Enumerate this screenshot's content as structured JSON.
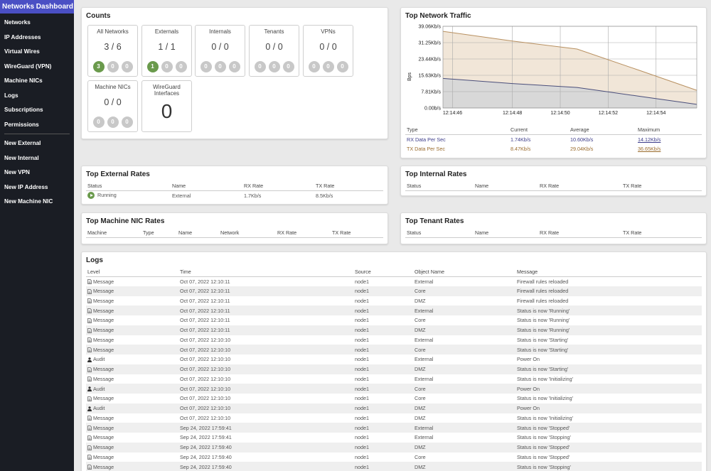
{
  "sidebar": {
    "title": "Networks Dashboard",
    "nav": [
      "Networks",
      "IP Addresses",
      "Virtual Wires",
      "WireGuard (VPN)",
      "Machine NICs",
      "Logs",
      "Subscriptions",
      "Permissions"
    ],
    "actions": [
      "New External",
      "New Internal",
      "New VPN",
      "New IP Address",
      "New Machine NIC"
    ]
  },
  "counts": {
    "title": "Counts",
    "cards": [
      {
        "label": "All Networks",
        "value": "3 / 6",
        "dots": [
          "3",
          "0",
          "0"
        ]
      },
      {
        "label": "Externals",
        "value": "1 / 1",
        "dots": [
          "1",
          "0",
          "0"
        ]
      },
      {
        "label": "Internals",
        "value": "0 / 0",
        "dots": [
          "0",
          "0",
          "0"
        ]
      },
      {
        "label": "Tenants",
        "value": "0 / 0",
        "dots": [
          "0",
          "0",
          "0"
        ]
      },
      {
        "label": "VPNs",
        "value": "0 / 0",
        "dots": [
          "0",
          "0",
          "0"
        ]
      },
      {
        "label": "Machine NICs",
        "value": "0 / 0",
        "dots": [
          "0",
          "0",
          "0"
        ]
      },
      {
        "label": "WireGuard Interfaces",
        "value": "0"
      }
    ],
    "green_color": "#6a9a4c",
    "grey_color": "#c8c8c8"
  },
  "traffic": {
    "title": "Top Network Traffic",
    "table_headers": [
      "Type",
      "Current",
      "Average",
      "Maximum"
    ],
    "rows": [
      {
        "type": "RX Data Per Sec",
        "current": "1.74Kb/s",
        "average": "10.60Kb/s",
        "maximum": "14.12Kb/s"
      },
      {
        "type": "TX Data Per Sec",
        "current": "8.47Kb/s",
        "average": "29.04Kb/s",
        "maximum": "36.65Kb/s"
      }
    ]
  },
  "chart_data": {
    "type": "area",
    "title": "",
    "xlabel": "",
    "ylabel": "Bps",
    "x": [
      "12:14:45.6",
      "12:14:48.5",
      "12:14:51.2",
      "12:14:53.8",
      "12:14:56.2"
    ],
    "xticks": [
      "12:14:46",
      "12:14:48",
      "12:14:50",
      "12:14:52",
      "12:14:54"
    ],
    "yticks": [
      "0.00b/s",
      "7.81Kb/s",
      "15.63Kb/s",
      "23.44Kb/s",
      "31.25Kb/s",
      "39.06Kb/s"
    ],
    "ylim": [
      0,
      39.06
    ],
    "series": [
      {
        "name": "TX Data Per Sec",
        "values": [
          36.65,
          32.0,
          28.2,
          18.0,
          8.47
        ],
        "color": "#b89060",
        "fill": "#f1e6d8"
      },
      {
        "name": "RX Data Per Sec",
        "values": [
          14.12,
          11.7,
          9.8,
          5.6,
          1.74
        ],
        "color": "#4a4e7a",
        "fill": "#d8d8d8"
      }
    ],
    "grid": true
  },
  "external_rates": {
    "title": "Top External Rates",
    "headers": [
      "Status",
      "Name",
      "RX Rate",
      "TX Rate"
    ],
    "rows": [
      {
        "status": "Running",
        "name": "External",
        "rx": "1.7Kb/s",
        "tx": "8.5Kb/s"
      }
    ]
  },
  "internal_rates": {
    "title": "Top Internal Rates",
    "headers": [
      "Status",
      "Name",
      "RX Rate",
      "TX Rate"
    ]
  },
  "nic_rates": {
    "title": "Top Machine NIC Rates",
    "headers": [
      "Machine",
      "Type",
      "Name",
      "Network",
      "RX Rate",
      "TX Rate"
    ]
  },
  "tenant_rates": {
    "title": "Top Tenant Rates",
    "headers": [
      "Status",
      "Name",
      "RX Rate",
      "TX Rate"
    ]
  },
  "logs": {
    "title": "Logs",
    "headers": [
      "Level",
      "Time",
      "Source",
      "Object Name",
      "Message"
    ],
    "rows": [
      {
        "level": "Message",
        "icon": "document-icon",
        "time": "Oct 07, 2022 12:10:11",
        "source": "node1",
        "object": "External",
        "message": "Firewall rules reloaded"
      },
      {
        "level": "Message",
        "icon": "document-icon",
        "time": "Oct 07, 2022 12:10:11",
        "source": "node1",
        "object": "Core",
        "message": "Firewall rules reloaded"
      },
      {
        "level": "Message",
        "icon": "document-icon",
        "time": "Oct 07, 2022 12:10:11",
        "source": "node1",
        "object": "DMZ",
        "message": "Firewall rules reloaded"
      },
      {
        "level": "Message",
        "icon": "document-icon",
        "time": "Oct 07, 2022 12:10:11",
        "source": "node1",
        "object": "External",
        "message": "Status is now 'Running'"
      },
      {
        "level": "Message",
        "icon": "document-icon",
        "time": "Oct 07, 2022 12:10:11",
        "source": "node1",
        "object": "Core",
        "message": "Status is now 'Running'"
      },
      {
        "level": "Message",
        "icon": "document-icon",
        "time": "Oct 07, 2022 12:10:11",
        "source": "node1",
        "object": "DMZ",
        "message": "Status is now 'Running'"
      },
      {
        "level": "Message",
        "icon": "document-icon",
        "time": "Oct 07, 2022 12:10:10",
        "source": "node1",
        "object": "External",
        "message": "Status is now 'Starting'"
      },
      {
        "level": "Message",
        "icon": "document-icon",
        "time": "Oct 07, 2022 12:10:10",
        "source": "node1",
        "object": "Core",
        "message": "Status is now 'Starting'"
      },
      {
        "level": "Audit",
        "icon": "user-icon",
        "time": "Oct 07, 2022 12:10:10",
        "source": "node1",
        "object": "External",
        "message": "Power On"
      },
      {
        "level": "Message",
        "icon": "document-icon",
        "time": "Oct 07, 2022 12:10:10",
        "source": "node1",
        "object": "DMZ",
        "message": "Status is now 'Starting'"
      },
      {
        "level": "Message",
        "icon": "document-icon",
        "time": "Oct 07, 2022 12:10:10",
        "source": "node1",
        "object": "External",
        "message": "Status is now 'Initializing'"
      },
      {
        "level": "Audit",
        "icon": "user-icon",
        "time": "Oct 07, 2022 12:10:10",
        "source": "node1",
        "object": "Core",
        "message": "Power On"
      },
      {
        "level": "Message",
        "icon": "document-icon",
        "time": "Oct 07, 2022 12:10:10",
        "source": "node1",
        "object": "Core",
        "message": "Status is now 'Initializing'"
      },
      {
        "level": "Audit",
        "icon": "user-icon",
        "time": "Oct 07, 2022 12:10:10",
        "source": "node1",
        "object": "DMZ",
        "message": "Power On"
      },
      {
        "level": "Message",
        "icon": "document-icon",
        "time": "Oct 07, 2022 12:10:10",
        "source": "node1",
        "object": "DMZ",
        "message": "Status is now 'Initializing'"
      },
      {
        "level": "Message",
        "icon": "document-icon",
        "time": "Sep 24, 2022 17:59:41",
        "source": "node1",
        "object": "External",
        "message": "Status is now 'Stopped'"
      },
      {
        "level": "Message",
        "icon": "document-icon",
        "time": "Sep 24, 2022 17:59:41",
        "source": "node1",
        "object": "External",
        "message": "Status is now 'Stopping'"
      },
      {
        "level": "Message",
        "icon": "document-icon",
        "time": "Sep 24, 2022 17:59:40",
        "source": "node1",
        "object": "DMZ",
        "message": "Status is now 'Stopped'"
      },
      {
        "level": "Message",
        "icon": "document-icon",
        "time": "Sep 24, 2022 17:59:40",
        "source": "node1",
        "object": "Core",
        "message": "Status is now 'Stopped'"
      },
      {
        "level": "Message",
        "icon": "document-icon",
        "time": "Sep 24, 2022 17:59:40",
        "source": "node1",
        "object": "DMZ",
        "message": "Status is now 'Stopping'"
      }
    ]
  }
}
